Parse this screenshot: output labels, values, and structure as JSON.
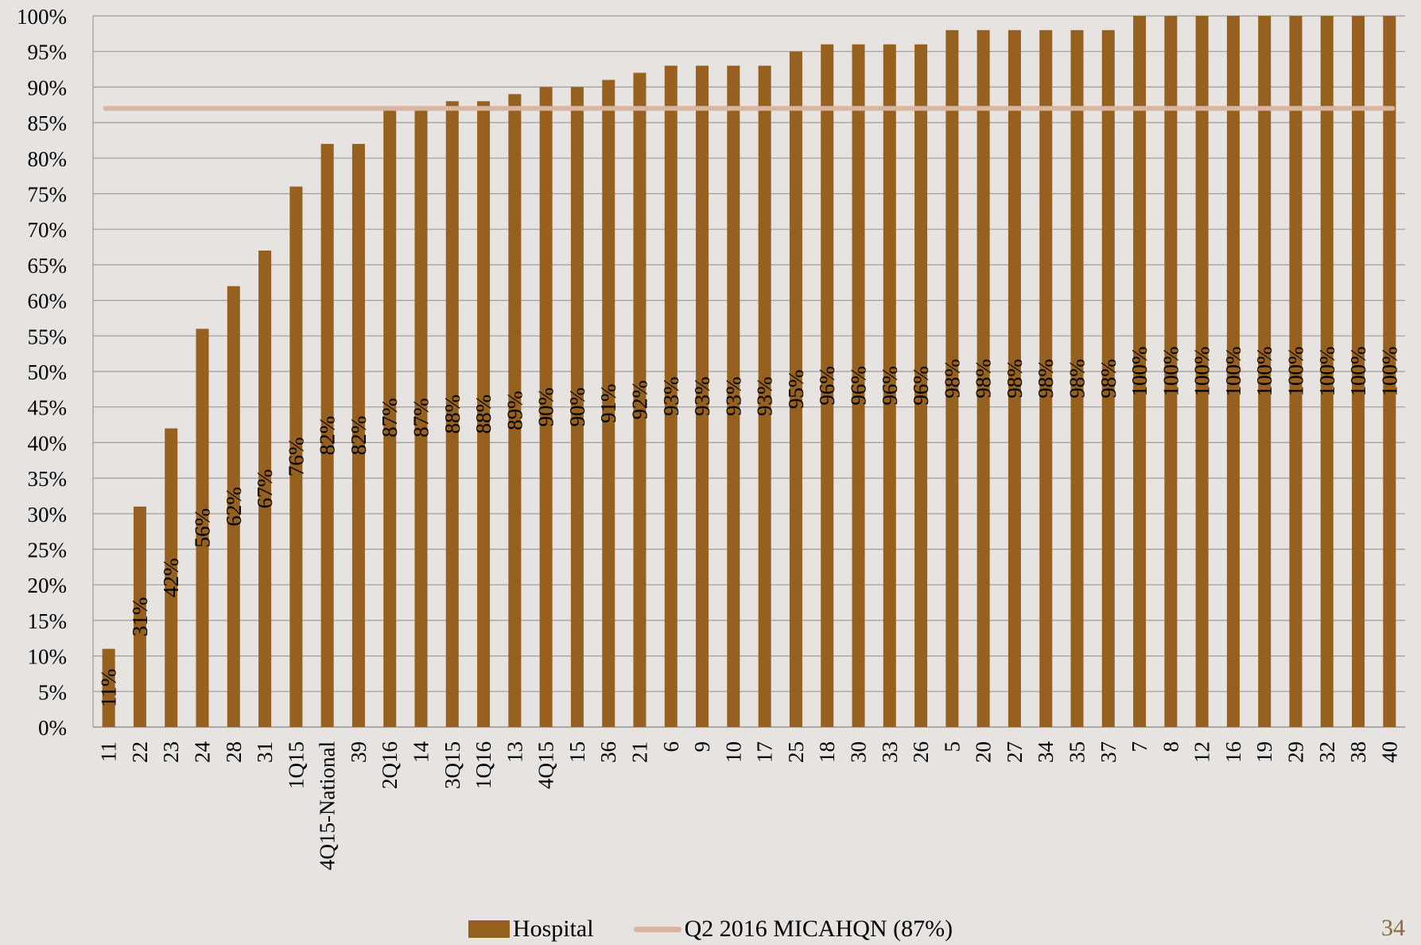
{
  "chart_data": {
    "type": "bar",
    "categories": [
      "11",
      "22",
      "23",
      "24",
      "28",
      "31",
      "1Q15",
      "4Q15-National",
      "39",
      "2Q16",
      "14",
      "3Q15",
      "1Q16",
      "13",
      "4Q15",
      "15",
      "36",
      "21",
      "6",
      "9",
      "10",
      "17",
      "25",
      "18",
      "30",
      "33",
      "26",
      "5",
      "20",
      "27",
      "34",
      "35",
      "37",
      "7",
      "8",
      "12",
      "16",
      "19",
      "29",
      "32",
      "38",
      "40"
    ],
    "series": [
      {
        "name": "Hospital",
        "type": "bar",
        "values": [
          11,
          31,
          42,
          56,
          62,
          67,
          76,
          82,
          82,
          87,
          87,
          88,
          88,
          89,
          90,
          90,
          91,
          92,
          93,
          93,
          93,
          93,
          95,
          96,
          96,
          96,
          96,
          98,
          98,
          98,
          98,
          98,
          98,
          100,
          100,
          100,
          100,
          100,
          100,
          100,
          100,
          100
        ],
        "data_labels": [
          "11%",
          "31%",
          "42%",
          "56%",
          "62%",
          "67%",
          "76%",
          "82%",
          "82%",
          "87%",
          "87%",
          "88%",
          "88%",
          "89%",
          "90%",
          "90%",
          "91%",
          "92%",
          "93%",
          "93%",
          "93%",
          "93%",
          "95%",
          "96%",
          "96%",
          "96%",
          "96%",
          "98%",
          "98%",
          "98%",
          "98%",
          "98%",
          "98%",
          "100%",
          "100%",
          "100%",
          "100%",
          "100%",
          "100%",
          "100%",
          "100%",
          "100%"
        ]
      },
      {
        "name": "Q2 2016 MICAHQN (87%)",
        "type": "line",
        "value": 87
      }
    ],
    "ylim": [
      0,
      100
    ],
    "yticks": [
      "0%",
      "5%",
      "10%",
      "15%",
      "20%",
      "25%",
      "30%",
      "35%",
      "40%",
      "45%",
      "50%",
      "55%",
      "60%",
      "65%",
      "70%",
      "75%",
      "80%",
      "85%",
      "90%",
      "95%",
      "100%"
    ],
    "grid": true,
    "legend_position": "bottom",
    "colors": {
      "bar": "#96601e",
      "line": "#d9b5a0",
      "grid": "#9c9c9c",
      "background": "#e6e3e0"
    }
  },
  "legend": {
    "bar_label": "Hospital",
    "line_label": "Q2 2016 MICAHQN (87%)"
  },
  "page_number": "34"
}
